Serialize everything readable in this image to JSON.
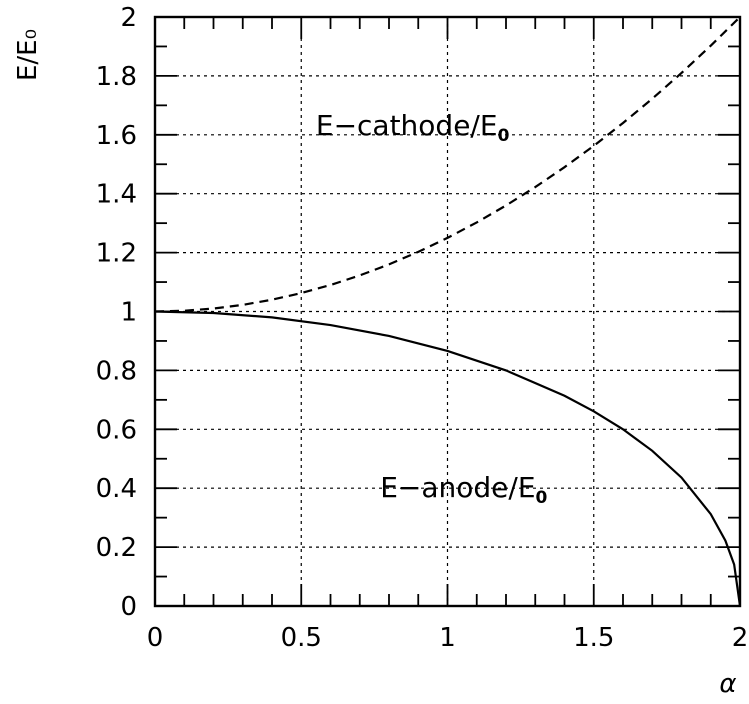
{
  "chart_data": {
    "type": "line",
    "title": "",
    "xlabel": "α",
    "ylabel": "E/E₀",
    "xlim": [
      0,
      2
    ],
    "ylim": [
      0,
      2
    ],
    "grid": true,
    "x_ticks": [
      "0",
      "0.5",
      "1",
      "1.5",
      "2"
    ],
    "y_ticks": [
      "0",
      "0.2",
      "0.4",
      "0.6",
      "0.8",
      "1",
      "1.2",
      "1.4",
      "1.6",
      "1.8",
      "2"
    ],
    "series": [
      {
        "name": "E-cathode/E₀",
        "style": "dashed",
        "x": [
          0,
          0.1,
          0.2,
          0.3,
          0.4,
          0.5,
          0.6,
          0.7,
          0.8,
          0.9,
          1.0,
          1.1,
          1.2,
          1.3,
          1.4,
          1.5,
          1.6,
          1.7,
          1.8,
          1.9,
          2.0
        ],
        "y": [
          1.0,
          1.0025,
          1.01,
          1.0225,
          1.04,
          1.0625,
          1.09,
          1.1225,
          1.16,
          1.2025,
          1.25,
          1.3025,
          1.36,
          1.4225,
          1.49,
          1.5625,
          1.64,
          1.7225,
          1.81,
          1.9025,
          2.0
        ]
      },
      {
        "name": "E-anode/E₀",
        "style": "solid",
        "x": [
          0,
          0.2,
          0.4,
          0.6,
          0.8,
          1.0,
          1.2,
          1.4,
          1.5,
          1.6,
          1.7,
          1.8,
          1.9,
          1.95,
          1.98,
          2.0
        ],
        "y": [
          1.0,
          0.995,
          0.98,
          0.954,
          0.917,
          0.866,
          0.8,
          0.714,
          0.661,
          0.6,
          0.527,
          0.436,
          0.312,
          0.222,
          0.141,
          0.0
        ]
      }
    ],
    "annotations": [
      {
        "main": "E−cathode/E",
        "sub": "0",
        "x": 0.55,
        "y": 1.6
      },
      {
        "main": "E−anode/E",
        "sub": "0",
        "x": 0.77,
        "y": 0.37
      }
    ]
  }
}
